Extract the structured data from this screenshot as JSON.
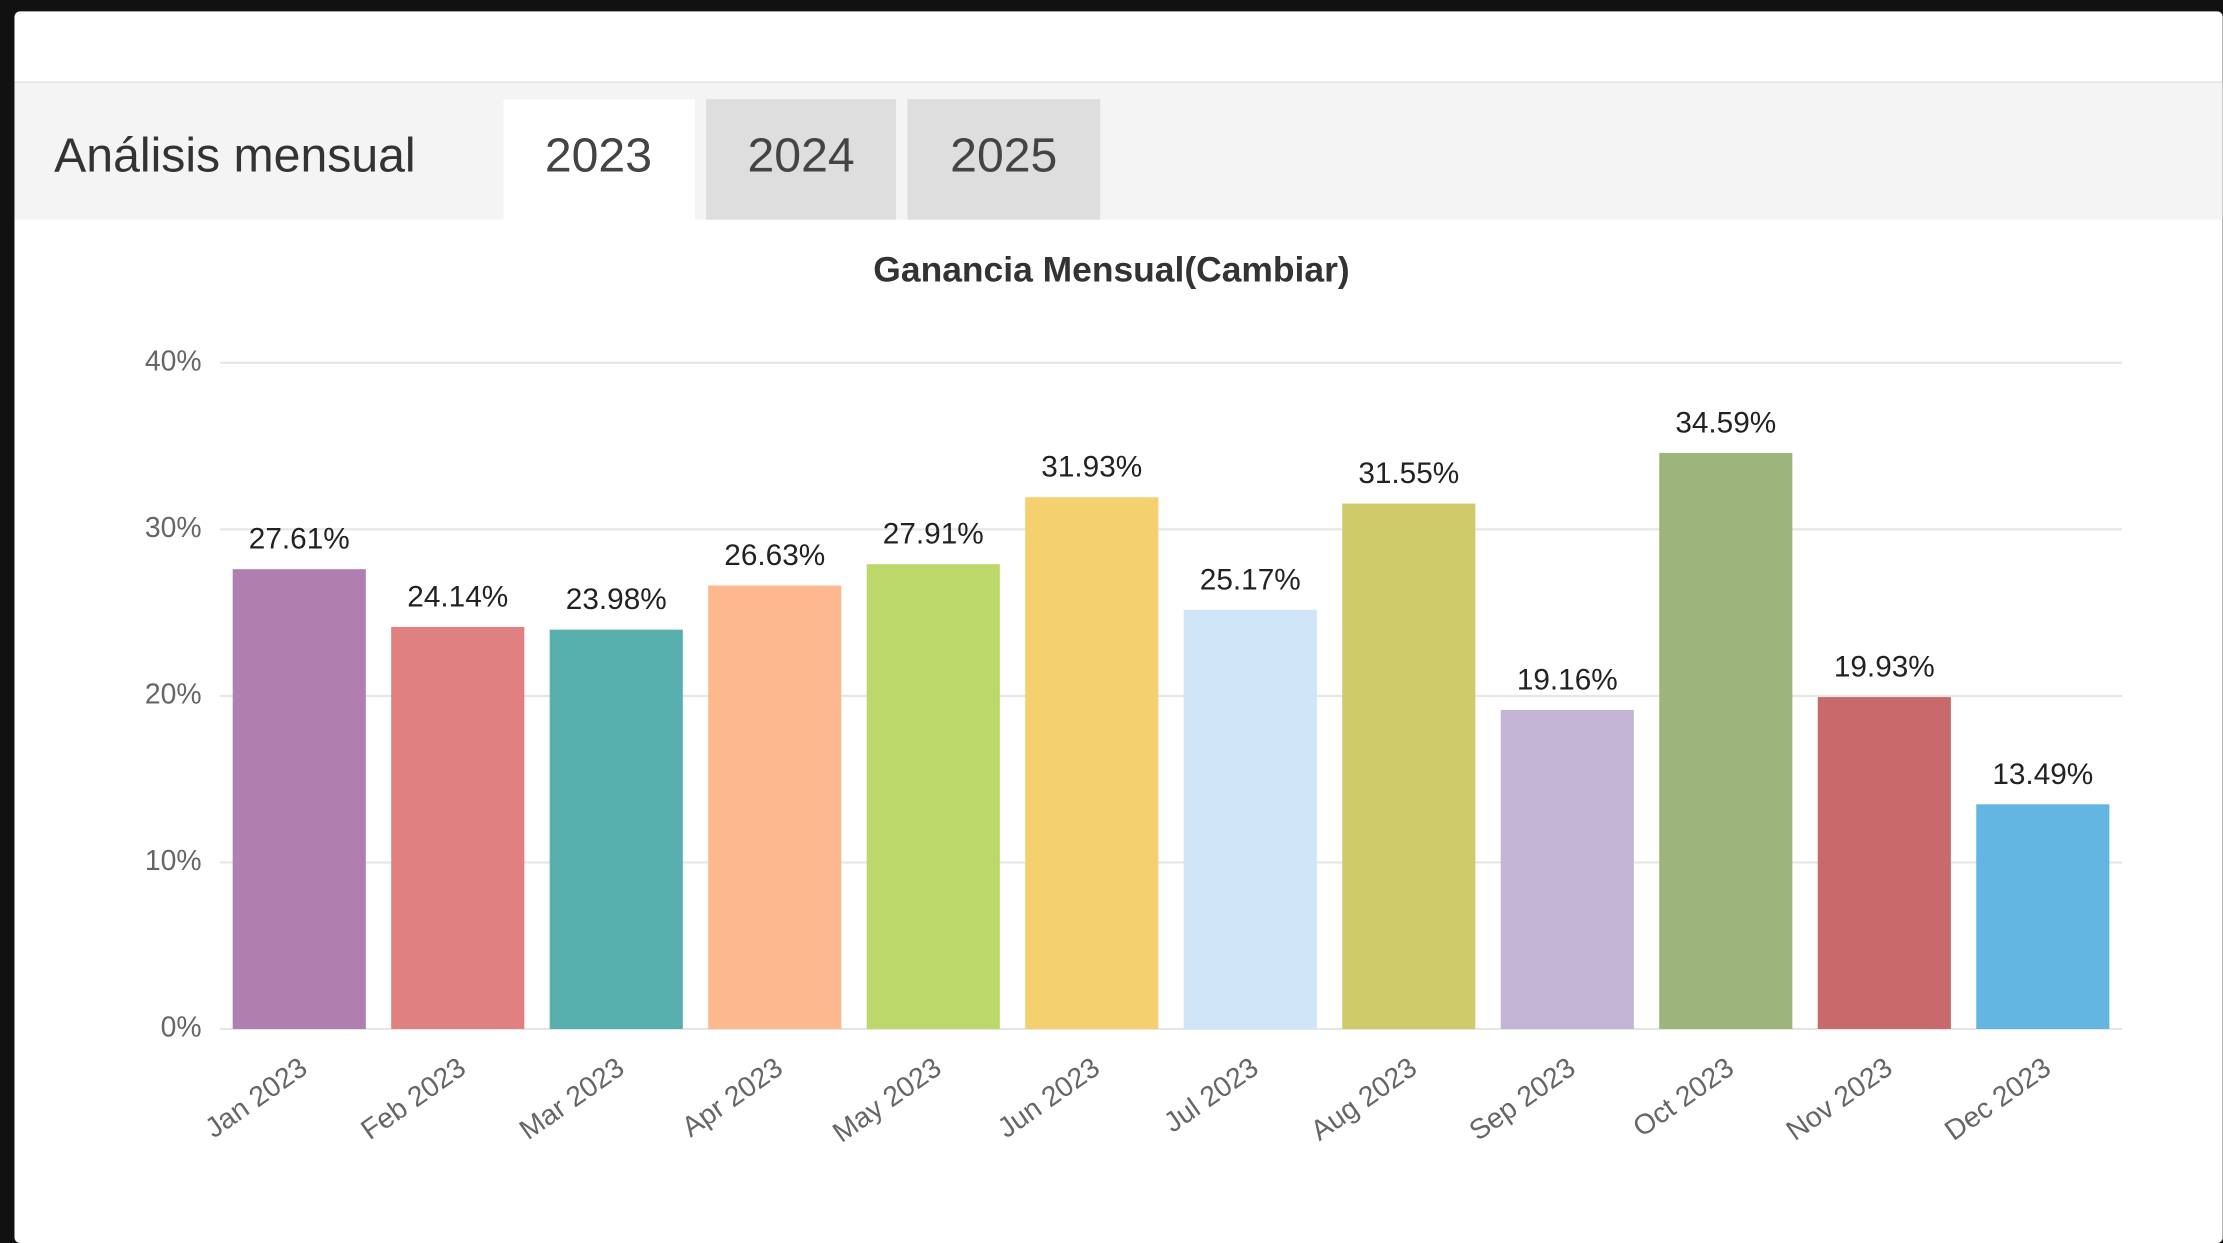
{
  "header": {
    "title": "Análisis mensual",
    "tabs": [
      "2023",
      "2024",
      "2025"
    ]
  },
  "chart_data": {
    "type": "bar",
    "title": "Ganancia Mensual(Cambiar)",
    "categories": [
      "Jan 2023",
      "Feb 2023",
      "Mar 2023",
      "Apr 2023",
      "May 2023",
      "Jun 2023",
      "Jul 2023",
      "Aug 2023",
      "Sep 2023",
      "Oct 2023",
      "Nov 2023",
      "Dec 2023"
    ],
    "values": [
      27.61,
      24.14,
      23.98,
      26.63,
      27.91,
      31.93,
      25.17,
      31.55,
      19.16,
      34.59,
      19.93,
      13.49
    ],
    "value_labels": [
      "27.61%",
      "24.14%",
      "23.98%",
      "26.63%",
      "27.91%",
      "31.93%",
      "25.17%",
      "31.55%",
      "19.16%",
      "34.59%",
      "19.93%",
      "13.49%"
    ],
    "colors": [
      "#b07fb0",
      "#e08080",
      "#57b0ae",
      "#fdb98e",
      "#bcd86a",
      "#f5d06e",
      "#cfe5f8",
      "#d0cb6a",
      "#c4b4d6",
      "#9bb57c",
      "#c86a6c",
      "#63b5e2"
    ],
    "ylim": [
      0,
      40
    ],
    "yticks": [
      {
        "value": 0,
        "label": "0%"
      },
      {
        "value": 10,
        "label": "10%"
      },
      {
        "value": 20,
        "label": "20%"
      },
      {
        "value": 30,
        "label": "30%"
      },
      {
        "value": 40,
        "label": "40%"
      }
    ],
    "grid": true
  }
}
